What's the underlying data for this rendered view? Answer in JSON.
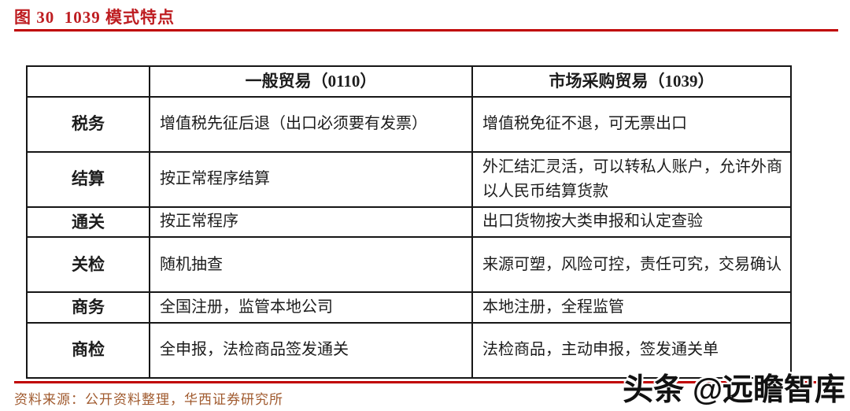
{
  "figure": {
    "title": "图 30  1039 模式特点",
    "source": "资料来源：公开资料整理，华西证券研究所"
  },
  "watermark": {
    "text": "头条 @远瞻智库"
  },
  "colors": {
    "accent_red": "#c00000",
    "title_red": "#be1d21",
    "source_brown": "#a05a2e",
    "table_border": "#161616"
  },
  "table": {
    "headers": [
      "",
      "一般贸易（0110）",
      "市场采购贸易（1039）"
    ],
    "rows": [
      {
        "label": "税务",
        "general": "增值税先征后退（出口必须要有发票）",
        "market": "增值税免征不退，可无票出口"
      },
      {
        "label": "结算",
        "general": "按正常程序结算",
        "market": "外汇结汇灵活，可以转私人账户，允许外商以人民币结算货款"
      },
      {
        "label": "通关",
        "general": "按正常程序",
        "market": "出口货物按大类申报和认定查验"
      },
      {
        "label": "关检",
        "general": "随机抽查",
        "market": "来源可塑，风险可控，责任可究，交易确认"
      },
      {
        "label": "商务",
        "general": "全国注册，监管本地公司",
        "market": "本地注册，全程监管"
      },
      {
        "label": "商检",
        "general": "全申报，法检商品签发通关",
        "market": "法检商品，主动申报，签发通关单"
      }
    ]
  }
}
